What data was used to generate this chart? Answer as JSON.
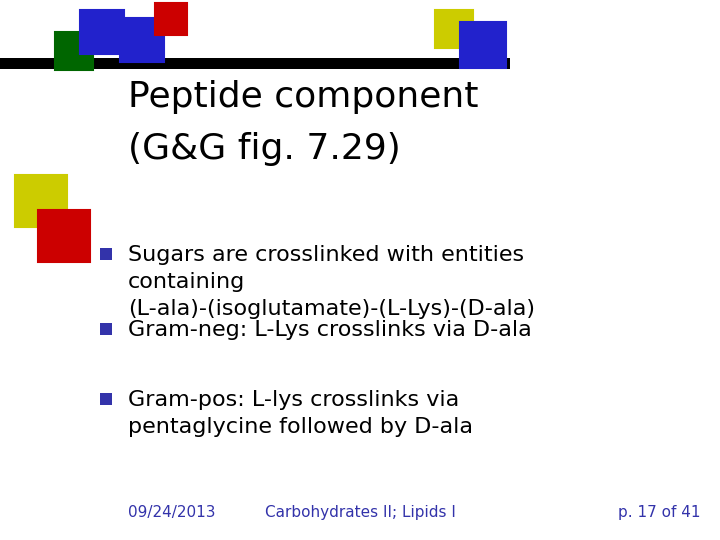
{
  "title_line1": "Peptide component",
  "title_line2": "(G&G fig. 7.29)",
  "bullets": [
    "Sugars are crosslinked with entities\ncontaining\n(L-ala)-(isoglutamate)-(L-Lys)-(D-ala)",
    "Gram-neg: L-Lys crosslinks via D-ala",
    "Gram-pos: L-lys crosslinks via\npentaglycine followed by D-ala"
  ],
  "bullet_color": "#3333AA",
  "footer_left": "09/24/2013",
  "footer_center": "Carbohydrates II; Lipids I",
  "footer_right": "p. 17 of 41",
  "footer_color": "#3333AA",
  "bg_color": "#FFFFFF",
  "text_color": "#000000",
  "title_fontsize": 26,
  "bullet_fontsize": 16,
  "footer_fontsize": 11,
  "hbar_color": "#000000",
  "sq_edge": "#000000",
  "sq_lw": 1.5,
  "squares_top": [
    {
      "xp": 55,
      "yp": 32,
      "wp": 38,
      "hp": 38,
      "color": "#006600"
    },
    {
      "xp": 80,
      "yp": 10,
      "wp": 44,
      "hp": 44,
      "color": "#2222CC"
    },
    {
      "xp": 120,
      "yp": 18,
      "wp": 44,
      "hp": 44,
      "color": "#2222CC"
    },
    {
      "xp": 155,
      "yp": 3,
      "wp": 32,
      "hp": 32,
      "color": "#CC0000"
    },
    {
      "xp": 435,
      "yp": 10,
      "wp": 38,
      "hp": 38,
      "color": "#CCCC00"
    },
    {
      "xp": 460,
      "yp": 22,
      "wp": 46,
      "hp": 46,
      "color": "#2222CC"
    }
  ],
  "squares_left": [
    {
      "xp": 15,
      "yp": 175,
      "wp": 52,
      "hp": 52,
      "color": "#CCCC00"
    },
    {
      "xp": 38,
      "yp": 210,
      "wp": 52,
      "hp": 52,
      "color": "#CC0000"
    }
  ],
  "hbar_xstart": 0,
  "hbar_xend": 510,
  "hbar_yp": 58,
  "hbar_hp": 11
}
